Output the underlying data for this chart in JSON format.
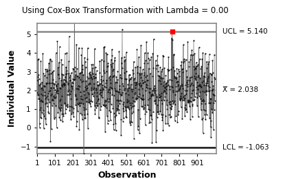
{
  "title": "Using Cox-Box Transformation with Lambda = 0.00",
  "xlabel": "Observation",
  "ylabel": "Individual Value",
  "UCL": 5.14,
  "CL": 2.038,
  "LCL": -1.063,
  "UCL_label": "UCL = 5.140",
  "CL_label": "X̅ = 2.038",
  "LCL_label": "LCL = -1.063",
  "n_points": 1000,
  "outlier_index": 759,
  "outlier_value": 5.15,
  "seed": 42,
  "ylim": [
    -1.4,
    5.6
  ],
  "xlim": [
    0,
    1010
  ],
  "xticks": [
    1,
    101,
    201,
    301,
    401,
    501,
    601,
    701,
    801,
    901
  ],
  "yticks": [
    -1,
    0,
    1,
    2,
    3,
    4,
    5
  ],
  "line_color": "#666666",
  "dot_color": "#111111",
  "ucl_color": "#888888",
  "lcl_color": "#111111",
  "cl_color": "#aaaaaa",
  "outlier_color": "#ff0000",
  "bg_color": "#ffffff",
  "box_color": "#888888",
  "title_fontsize": 8.5,
  "axis_label_fontsize": 9,
  "tick_fontsize": 7.5,
  "annotation_fontsize": 7.5
}
